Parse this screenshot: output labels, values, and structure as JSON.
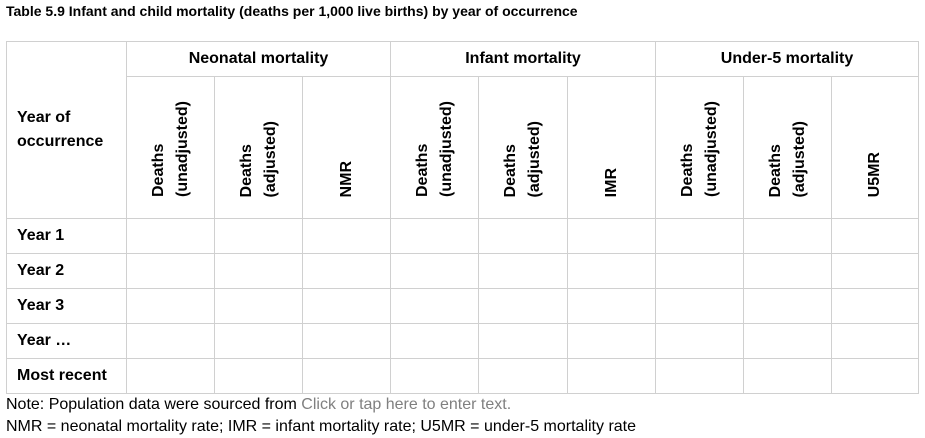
{
  "caption": "Table 5.9 Infant and child mortality (deaths per 1,000 live births) by year of occurrence",
  "table": {
    "year_header_line1": "Year of",
    "year_header_line2": "occurrence",
    "groups": [
      {
        "label": "Neonatal mortality",
        "columns": [
          {
            "line1": "Deaths",
            "line2": "(unadjusted)"
          },
          {
            "line1": "Deaths",
            "line2": "(adjusted)"
          },
          {
            "line1": "NMR",
            "line2": ""
          }
        ]
      },
      {
        "label": "Infant mortality",
        "columns": [
          {
            "line1": "Deaths",
            "line2": "(unadjusted)"
          },
          {
            "line1": "Deaths",
            "line2": "(adjusted)"
          },
          {
            "line1": "IMR",
            "line2": ""
          }
        ]
      },
      {
        "label": "Under-5 mortality",
        "columns": [
          {
            "line1": "Deaths",
            "line2": "(unadjusted)"
          },
          {
            "line1": "Deaths",
            "line2": "(adjusted)"
          },
          {
            "line1": "U5MR",
            "line2": ""
          }
        ]
      }
    ],
    "rows": [
      {
        "label": "Year 1",
        "values": [
          "",
          "",
          "",
          "",
          "",
          "",
          "",
          "",
          ""
        ]
      },
      {
        "label": "Year 2",
        "values": [
          "",
          "",
          "",
          "",
          "",
          "",
          "",
          "",
          ""
        ]
      },
      {
        "label": "Year 3",
        "values": [
          "",
          "",
          "",
          "",
          "",
          "",
          "",
          "",
          ""
        ]
      },
      {
        "label": "Year …",
        "values": [
          "",
          "",
          "",
          "",
          "",
          "",
          "",
          "",
          ""
        ]
      },
      {
        "label": "Most recent",
        "values": [
          "",
          "",
          "",
          "",
          "",
          "",
          "",
          "",
          ""
        ]
      }
    ]
  },
  "notes": {
    "source_prefix": "Note: Population data were sourced from ",
    "source_placeholder": "Click or tap here to enter text.",
    "abbreviations": "NMR = neonatal mortality rate; IMR = infant mortality rate; U5MR = under-5 mortality rate"
  }
}
